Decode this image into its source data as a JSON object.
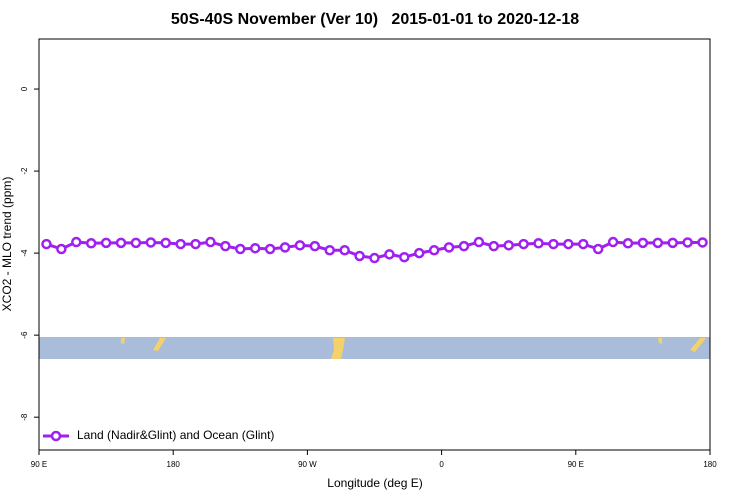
{
  "chart_data": {
    "type": "line",
    "title": "50S-40S November (Ver 10)   2015-01-01 to 2020-12-18",
    "x_label": "Longitude (deg E)",
    "y_label": "XCO2 - MLO trend (ppm)",
    "x": [
      95,
      105,
      115,
      125,
      135,
      145,
      155,
      165,
      175,
      185,
      195,
      205,
      215,
      225,
      235,
      245,
      255,
      265,
      275,
      285,
      295,
      305,
      315,
      325,
      335,
      345,
      355,
      365,
      375,
      385,
      395,
      405,
      415,
      425,
      435,
      445,
      455,
      465,
      475,
      485,
      495,
      505,
      515,
      525,
      535
    ],
    "series": [
      {
        "name": "Land (Nadir&Glint) and Ocean (Glint)",
        "color": "#a020f0",
        "values": [
          -3.78,
          -3.9,
          -3.73,
          -3.76,
          -3.75,
          -3.75,
          -3.75,
          -3.74,
          -3.75,
          -3.78,
          -3.78,
          -3.73,
          -3.83,
          -3.9,
          -3.88,
          -3.9,
          -3.86,
          -3.81,
          -3.83,
          -3.93,
          -3.93,
          -4.07,
          -4.12,
          -4.03,
          -4.1,
          -4.0,
          -3.93,
          -3.86,
          -3.83,
          -3.73,
          -3.83,
          -3.81,
          -3.78,
          -3.76,
          -3.78,
          -3.78,
          -3.78,
          -3.9,
          -3.73,
          -3.76,
          -3.75,
          -3.75,
          -3.75,
          -3.74,
          -3.74
        ]
      }
    ],
    "xlim": [
      90,
      540
    ],
    "xticks": [
      {
        "value": 90,
        "label": "90 E"
      },
      180,
      {
        "value": 270,
        "label": "90 W"
      },
      {
        "value": 360,
        "label": "0"
      },
      {
        "value": 450,
        "label": "90 E"
      },
      {
        "value": 540,
        "label": "180"
      }
    ],
    "ylim": [
      -8.8,
      1.22
    ],
    "yticks": [
      0,
      -2,
      -4,
      -6,
      -8
    ],
    "legend": "bottom-left"
  }
}
